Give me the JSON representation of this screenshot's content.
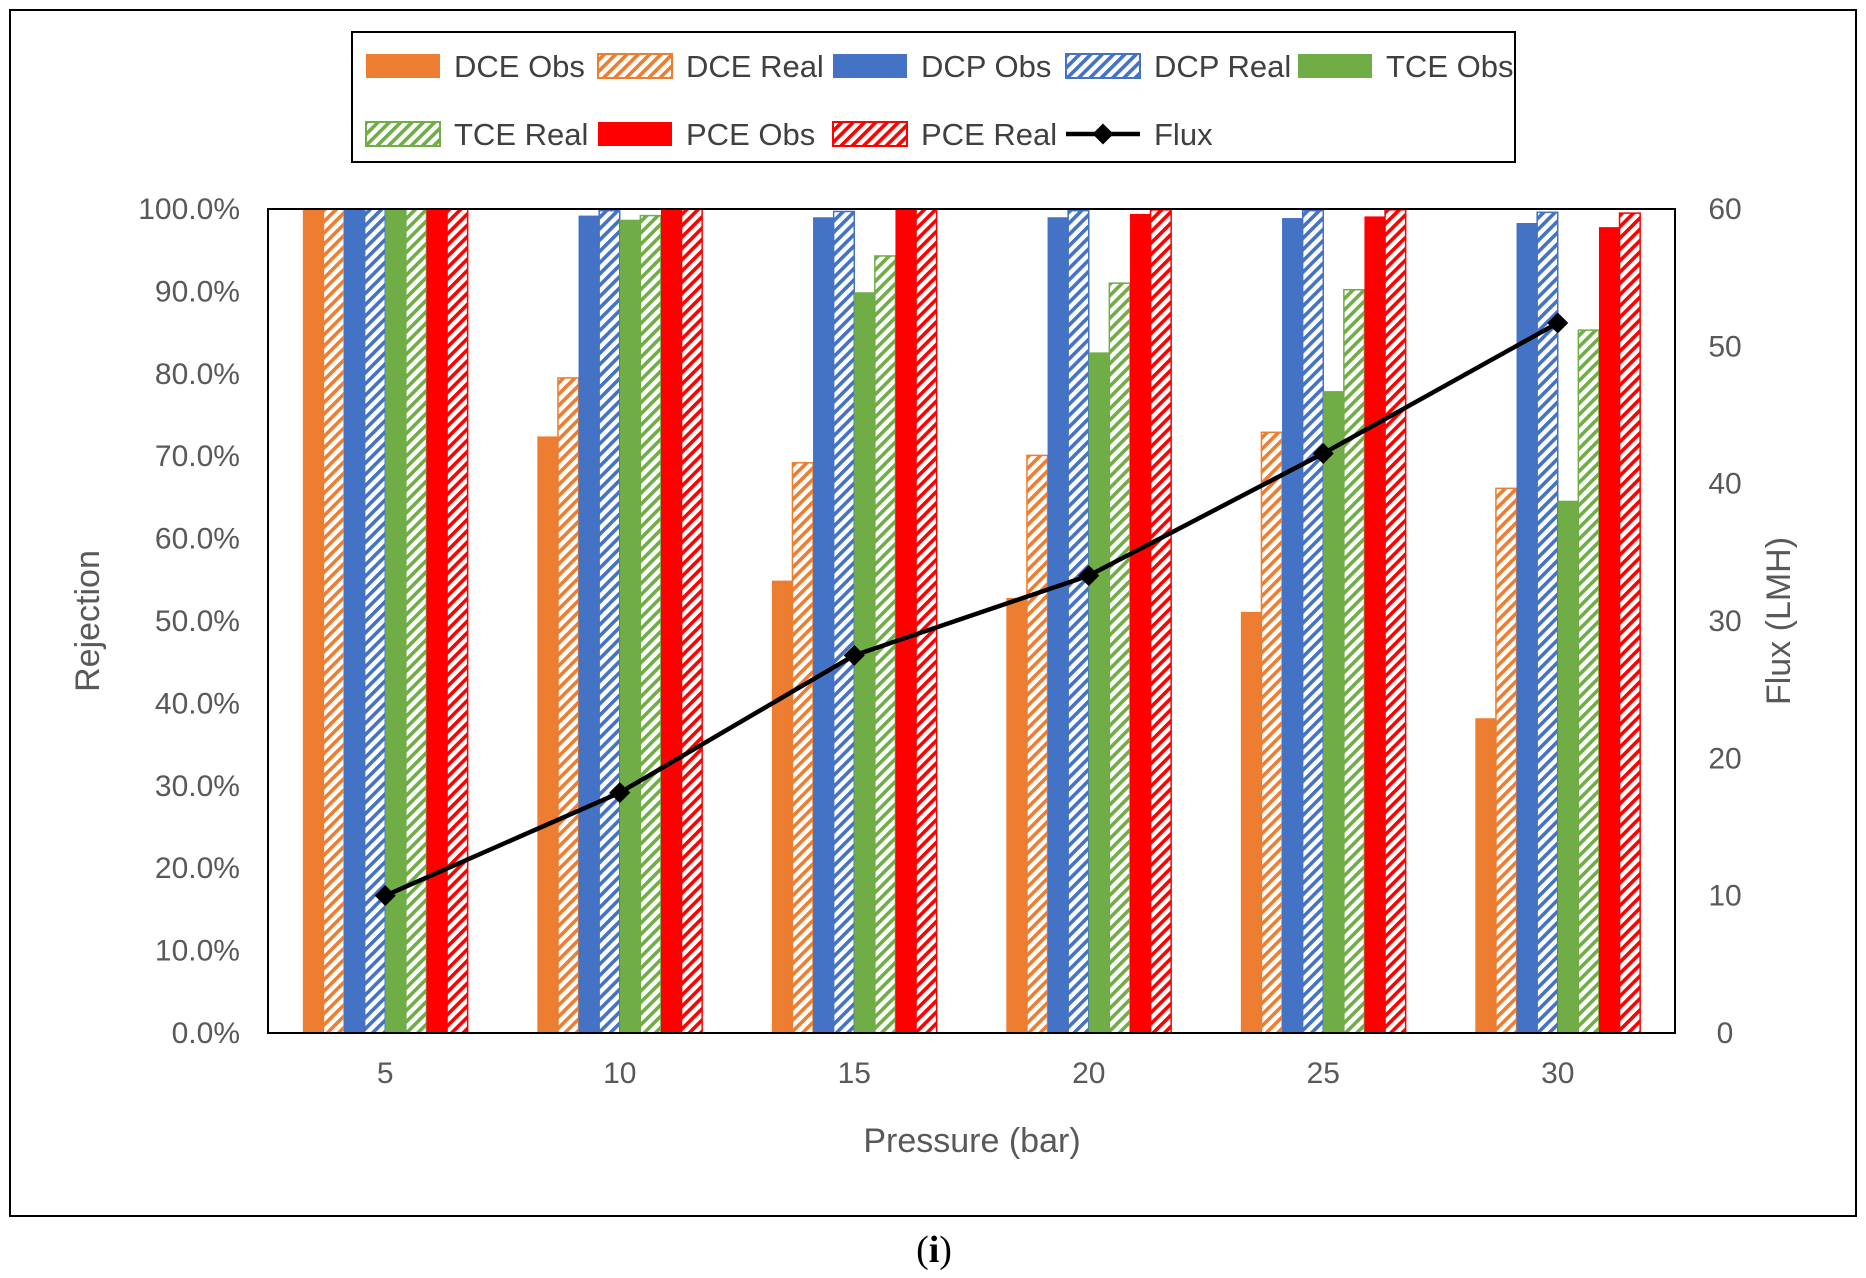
{
  "chart_data": {
    "type": "bar",
    "categories": [
      "5",
      "10",
      "15",
      "20",
      "25",
      "30"
    ],
    "xlabel": "Pressure (bar)",
    "ylabel": "Rejection",
    "y2label": "Flux (LMH)",
    "ylim": [
      0,
      1
    ],
    "y2lim": [
      0,
      60
    ],
    "yticks": [
      "0.0%",
      "10.0%",
      "20.0%",
      "30.0%",
      "40.0%",
      "50.0%",
      "60.0%",
      "70.0%",
      "80.0%",
      "90.0%",
      "100.0%"
    ],
    "y2ticks": [
      "0",
      "10",
      "20",
      "30",
      "40",
      "50",
      "60"
    ],
    "legend_position": "top",
    "caption_open": "(",
    "caption_label": "i",
    "caption_close": ")",
    "series": [
      {
        "name": "DCE Obs",
        "color": "#ED7D31",
        "pattern": "solid",
        "values": [
          1.0,
          0.724,
          0.549,
          0.528,
          0.511,
          0.382
        ]
      },
      {
        "name": "DCE Real",
        "color": "#ED7D31",
        "pattern": "hatched",
        "values": [
          1.0,
          0.795,
          0.692,
          0.701,
          0.729,
          0.661
        ]
      },
      {
        "name": "DCP Obs",
        "color": "#4472C4",
        "pattern": "solid",
        "values": [
          1.0,
          0.992,
          0.99,
          0.99,
          0.989,
          0.983
        ]
      },
      {
        "name": "DCP Real",
        "color": "#4472C4",
        "pattern": "hatched",
        "values": [
          1.0,
          0.998,
          0.997,
          0.998,
          0.998,
          0.996
        ]
      },
      {
        "name": "TCE Obs",
        "color": "#70AD47",
        "pattern": "solid",
        "values": [
          1.0,
          0.987,
          0.899,
          0.826,
          0.779,
          0.646
        ]
      },
      {
        "name": "TCE Real",
        "color": "#70AD47",
        "pattern": "hatched",
        "values": [
          1.0,
          0.992,
          0.943,
          0.91,
          0.902,
          0.853
        ]
      },
      {
        "name": "PCE Obs",
        "color": "#FF0000",
        "pattern": "solid",
        "values": [
          1.0,
          1.0,
          1.0,
          0.994,
          0.991,
          0.978
        ]
      },
      {
        "name": "PCE Real",
        "color": "#FF0000",
        "pattern": "hatched",
        "values": [
          1.0,
          1.0,
          1.0,
          0.999,
          0.999,
          0.995
        ]
      }
    ],
    "line_series": {
      "name": "Flux",
      "color": "#000000",
      "axis": "secondary",
      "marker": "diamond",
      "values": [
        10.0,
        17.5,
        27.5,
        33.3,
        42.2,
        51.7
      ]
    }
  }
}
